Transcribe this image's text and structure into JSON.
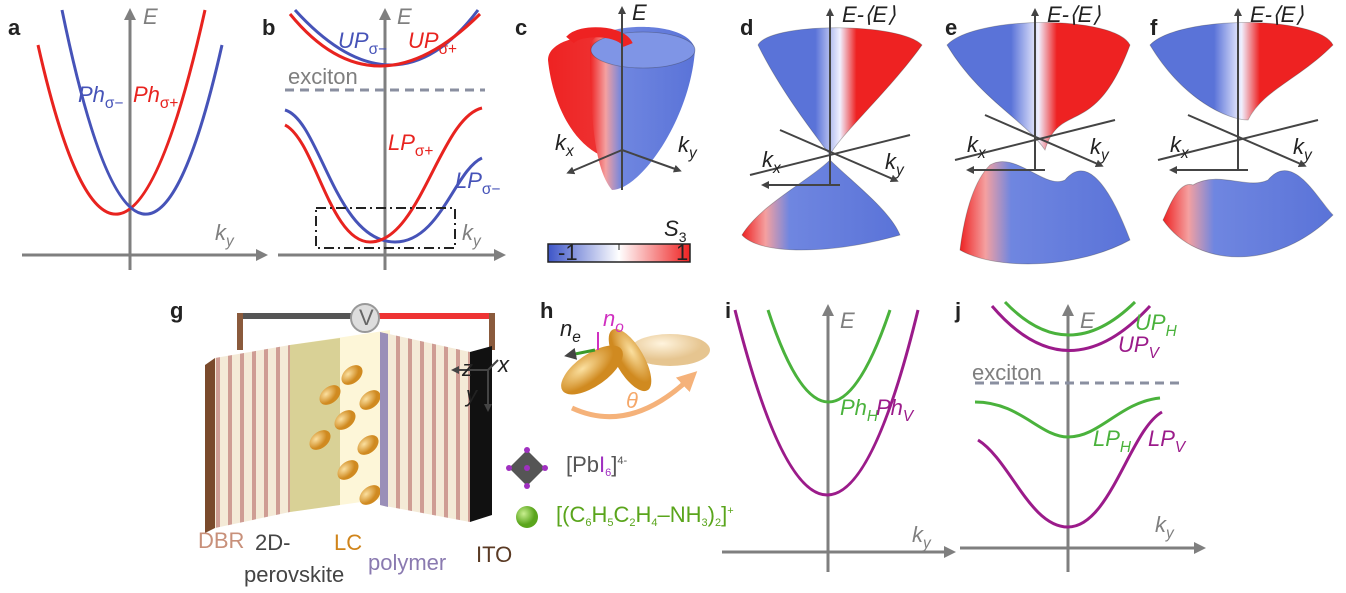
{
  "a": {
    "letter": "a",
    "y_axis": "E",
    "x_axis": [
      "k",
      "y"
    ],
    "curves": [
      [
        "Ph",
        "σ−"
      ],
      [
        "Ph",
        "σ+"
      ]
    ]
  },
  "b": {
    "letter": "b",
    "y_axis": "E",
    "x_axis": [
      "k",
      "y"
    ],
    "upper": [
      [
        "UP",
        "σ−"
      ],
      [
        "UP",
        "σ+"
      ]
    ],
    "exciton": "exciton",
    "lower": [
      [
        "LP",
        "σ+"
      ],
      [
        "LP",
        "σ−"
      ]
    ]
  },
  "c": {
    "letter": "c",
    "y_axis": "E",
    "kx": [
      "k",
      "x"
    ],
    "ky": [
      "k",
      "y"
    ],
    "colorbar": {
      "title": [
        "S",
        "3"
      ],
      "min": -1,
      "max": 1
    }
  },
  "d": {
    "letter": "d",
    "y_axis": "E-⟨E⟩",
    "kx": [
      "k",
      "x"
    ],
    "ky": [
      "k",
      "y"
    ]
  },
  "e": {
    "letter": "e",
    "y_axis": "E-⟨E⟩",
    "kx": [
      "k",
      "x"
    ],
    "ky": [
      "k",
      "y"
    ]
  },
  "f": {
    "letter": "f",
    "y_axis": "E-⟨E⟩",
    "kx": [
      "k",
      "x"
    ],
    "ky": [
      "k",
      "y"
    ]
  },
  "g": {
    "letter": "g",
    "voltmeter": "V",
    "axes": [
      "z",
      "x",
      "y"
    ],
    "layers": {
      "dbr": "DBR",
      "perovskite": [
        "2D-",
        "perovskite"
      ],
      "lc": "LC",
      "polymer": "polymer",
      "ito": "ITO"
    },
    "legend": [
      [
        "[Pb",
        "I",
        "6",
        "]",
        "4-"
      ],
      [
        "[(C",
        "6",
        "H",
        "5",
        "C",
        "2",
        "H",
        "4",
        "–NH",
        "3",
        ")",
        "2",
        "]",
        "+"
      ]
    ]
  },
  "h": {
    "letter": "h",
    "ne": [
      "n",
      "e"
    ],
    "no": [
      "n",
      "o"
    ],
    "angle": "θ"
  },
  "i": {
    "letter": "i",
    "y_axis": "E",
    "x_axis": [
      "k",
      "y"
    ],
    "curves": [
      [
        "Ph",
        "H"
      ],
      [
        "Ph",
        "V"
      ]
    ]
  },
  "j": {
    "letter": "j",
    "y_axis": "E",
    "x_axis": [
      "k",
      "y"
    ],
    "upper": [
      [
        "UP",
        "H"
      ],
      [
        "UP",
        "V"
      ]
    ],
    "exciton": "exciton",
    "lower": [
      [
        "LP",
        "H"
      ],
      [
        "LP",
        "V"
      ]
    ]
  }
}
